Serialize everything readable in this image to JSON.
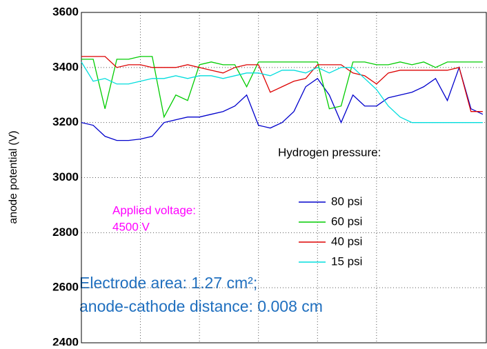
{
  "chart_data": {
    "type": "line",
    "y_label": "anode potential (V)",
    "legend_title": "Hydrogen pressure:",
    "annotations": [
      "Applied voltage:",
      "4500 V",
      "Electrode area: 1.27 cm²;",
      "anode-cathode distance: 0.008 cm"
    ],
    "x": [
      0,
      1,
      2,
      3,
      4,
      5,
      6,
      7,
      8,
      9,
      10,
      11,
      12,
      13,
      14,
      15,
      16,
      17,
      18,
      19,
      20,
      21,
      22,
      23,
      24,
      25,
      26,
      27,
      28,
      29,
      30,
      31,
      32,
      33,
      34
    ],
    "series": [
      {
        "name": "80 psi",
        "color": "#0000cc",
        "values": [
          3200,
          3190,
          3150,
          3135,
          3135,
          3140,
          3150,
          3200,
          3210,
          3220,
          3220,
          3230,
          3240,
          3260,
          3300,
          3190,
          3180,
          3200,
          3240,
          3330,
          3360,
          3300,
          3200,
          3300,
          3260,
          3260,
          3290,
          3300,
          3310,
          3330,
          3360,
          3280,
          3400,
          3250,
          3230
        ]
      },
      {
        "name": "60 psi",
        "color": "#00cc00",
        "values": [
          3430,
          3430,
          3250,
          3430,
          3430,
          3440,
          3440,
          3220,
          3300,
          3280,
          3410,
          3420,
          3410,
          3410,
          3330,
          3420,
          3420,
          3420,
          3420,
          3420,
          3420,
          3250,
          3260,
          3420,
          3420,
          3410,
          3410,
          3420,
          3410,
          3420,
          3400,
          3420,
          3420,
          3420,
          3420
        ]
      },
      {
        "name": "40 psi",
        "color": "#dd0000",
        "values": [
          3440,
          3440,
          3440,
          3400,
          3410,
          3410,
          3400,
          3400,
          3400,
          3410,
          3400,
          3390,
          3380,
          3400,
          3410,
          3410,
          3310,
          3330,
          3350,
          3360,
          3410,
          3410,
          3410,
          3380,
          3370,
          3340,
          3380,
          3390,
          3390,
          3390,
          3390,
          3390,
          3400,
          3240,
          3240
        ]
      },
      {
        "name": "15 psi",
        "color": "#00dddd",
        "values": [
          3420,
          3350,
          3360,
          3340,
          3340,
          3350,
          3360,
          3360,
          3370,
          3360,
          3370,
          3370,
          3360,
          3370,
          3380,
          3380,
          3370,
          3390,
          3390,
          3380,
          3400,
          3380,
          3400,
          3400,
          3360,
          3320,
          3260,
          3220,
          3200,
          3200,
          3200,
          3200,
          3200,
          3200,
          3200
        ]
      }
    ],
    "xlim": [
      0,
      34.3
    ],
    "ylim": [
      2400,
      3600
    ],
    "xticks": [
      0,
      5,
      10,
      15,
      20,
      25
    ],
    "yticks": [
      2400,
      2600,
      2800,
      3000,
      3200,
      3400,
      3600
    ],
    "grid": true
  }
}
